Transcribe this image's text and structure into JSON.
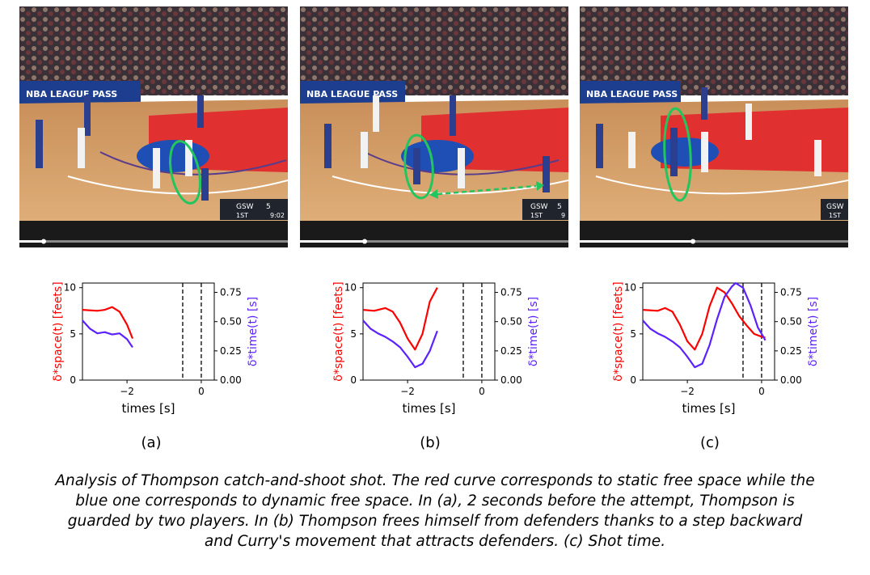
{
  "frames": [
    {
      "scorebug": {
        "team": "GSW",
        "score": "5",
        "period": "1ST",
        "clock": "9:02"
      },
      "banner": "NBA LEAGUE PASS"
    },
    {
      "scorebug": {
        "team": "GSW",
        "score": "5",
        "period": "1ST",
        "clock": "9"
      },
      "banner": "NBA LEAGUE PASS"
    },
    {
      "scorebug": {
        "team": "GSW",
        "score": "",
        "period": "1ST",
        "clock": ""
      },
      "banner": "NBA LEAGUE PASS"
    }
  ],
  "panel_labels": [
    "(a)",
    "(b)",
    "(c)"
  ],
  "axis": {
    "ylabel_left": "δ*space(t) [feets]",
    "ylabel_right": "δ*time(t) [s]",
    "xlabel": "times [s]",
    "left_ticks": [
      "10",
      "5",
      "0"
    ],
    "right_ticks": [
      "0.75",
      "0.50",
      "0.25",
      "0.00"
    ],
    "x_ticks": [
      "−2",
      "0"
    ]
  },
  "chart_data": [
    {
      "type": "line",
      "xlabel": "times [s]",
      "ylabel": "δ*space(t) [feets]",
      "ylabel_right": "δ*time(t) [s]",
      "xlim": [
        -3.2,
        0.35
      ],
      "ylim": [
        0,
        10.5
      ],
      "ylim_right": [
        0,
        0.83
      ],
      "vlines": [
        -0.5,
        0
      ],
      "series": [
        {
          "axis": "left",
          "color": "#ff0000",
          "x": [
            -3.2,
            -2.8,
            -2.6,
            -2.4,
            -2.2,
            -2.0,
            -1.85
          ],
          "y": [
            7.6,
            7.5,
            7.6,
            7.9,
            7.4,
            6.0,
            4.5
          ]
        },
        {
          "axis": "right",
          "color": "#5b21ff",
          "x": [
            -3.2,
            -3.0,
            -2.8,
            -2.6,
            -2.4,
            -2.2,
            -2.0,
            -1.85
          ],
          "y": [
            0.51,
            0.44,
            0.4,
            0.41,
            0.39,
            0.4,
            0.35,
            0.28
          ]
        }
      ]
    },
    {
      "type": "line",
      "xlabel": "times [s]",
      "ylabel": "δ*space(t) [feets]",
      "ylabel_right": "δ*time(t) [s]",
      "xlim": [
        -3.2,
        0.35
      ],
      "ylim": [
        0,
        10.5
      ],
      "ylim_right": [
        0,
        0.83
      ],
      "vlines": [
        -0.5,
        0
      ],
      "series": [
        {
          "axis": "left",
          "color": "#ff0000",
          "x": [
            -3.2,
            -2.9,
            -2.6,
            -2.4,
            -2.2,
            -2.0,
            -1.8,
            -1.6,
            -1.4,
            -1.2
          ],
          "y": [
            7.6,
            7.5,
            7.8,
            7.4,
            6.2,
            4.5,
            3.3,
            5.0,
            8.5,
            10.0
          ]
        },
        {
          "axis": "right",
          "color": "#5b21ff",
          "x": [
            -3.2,
            -3.0,
            -2.8,
            -2.6,
            -2.4,
            -2.2,
            -2.0,
            -1.8,
            -1.6,
            -1.4,
            -1.2
          ],
          "y": [
            0.51,
            0.44,
            0.4,
            0.37,
            0.33,
            0.28,
            0.2,
            0.11,
            0.14,
            0.25,
            0.42
          ]
        }
      ]
    },
    {
      "type": "line",
      "xlabel": "times [s]",
      "ylabel": "δ*space(t) [feets]",
      "ylabel_right": "δ*time(t) [s]",
      "xlim": [
        -3.2,
        0.35
      ],
      "ylim": [
        0,
        10.5
      ],
      "ylim_right": [
        0,
        0.83
      ],
      "vlines": [
        -0.5,
        0
      ],
      "series": [
        {
          "axis": "left",
          "color": "#ff0000",
          "x": [
            -3.2,
            -2.8,
            -2.6,
            -2.4,
            -2.2,
            -2.0,
            -1.8,
            -1.6,
            -1.4,
            -1.2,
            -1.0,
            -0.8,
            -0.6,
            -0.4,
            -0.2,
            0.0,
            0.1
          ],
          "y": [
            7.6,
            7.5,
            7.8,
            7.4,
            6.0,
            4.2,
            3.3,
            5.0,
            8.0,
            10.0,
            9.5,
            8.3,
            6.9,
            5.9,
            5.0,
            4.7,
            4.6
          ]
        },
        {
          "axis": "right",
          "color": "#5b21ff",
          "x": [
            -3.2,
            -3.0,
            -2.8,
            -2.6,
            -2.4,
            -2.2,
            -2.0,
            -1.8,
            -1.6,
            -1.4,
            -1.2,
            -1.0,
            -0.8,
            -0.7,
            -0.5,
            -0.3,
            -0.1,
            0.05,
            0.1
          ],
          "y": [
            0.51,
            0.44,
            0.4,
            0.37,
            0.33,
            0.28,
            0.2,
            0.11,
            0.14,
            0.3,
            0.52,
            0.71,
            0.8,
            0.83,
            0.79,
            0.64,
            0.45,
            0.37,
            0.34
          ]
        }
      ]
    }
  ],
  "caption_lines": [
    "Analysis of Thompson catch-and-shoot shot. The red curve corresponds to static free space while the",
    "blue one corresponds to dynamic free space. In (a), 2 seconds before the attempt, Thompson is",
    "guarded by two players. In (b) Thompson frees himself from defenders thanks to a step backward",
    "and Curry's movement that attracts defenders. (c)  Shot time."
  ]
}
